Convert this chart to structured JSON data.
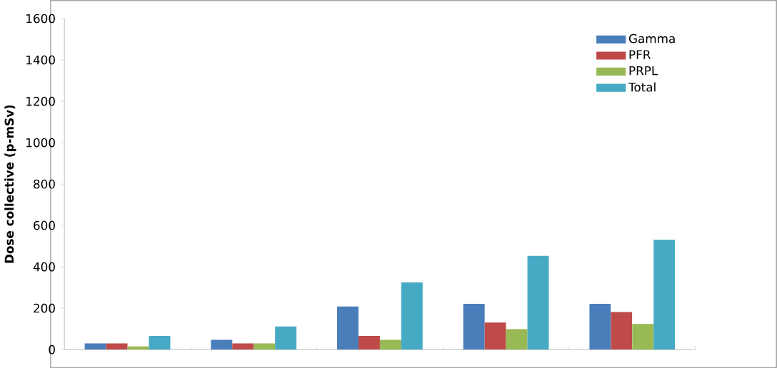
{
  "chart_data": {
    "type": "bar",
    "ylabel": "Dose collective (p-mSv)",
    "categories": [
      null,
      null,
      null,
      null,
      null
    ],
    "series": [
      {
        "name": "Gamma",
        "color": "#4a7ebb",
        "values": [
          30,
          47,
          208,
          221,
          221
        ]
      },
      {
        "name": "PFR",
        "color": "#be4b48",
        "values": [
          30,
          30,
          66,
          131,
          182
        ]
      },
      {
        "name": "PRPL",
        "color": "#98b954",
        "values": [
          15,
          30,
          47,
          99,
          124
        ]
      },
      {
        "name": "Total",
        "color": "#46aac5",
        "values": [
          66,
          112,
          325,
          453,
          531
        ]
      }
    ],
    "ylim": [
      0,
      1600
    ],
    "yticks": [
      0,
      200,
      400,
      600,
      800,
      1000,
      1200,
      1400,
      1600
    ],
    "legend": "top right",
    "grid": false
  }
}
